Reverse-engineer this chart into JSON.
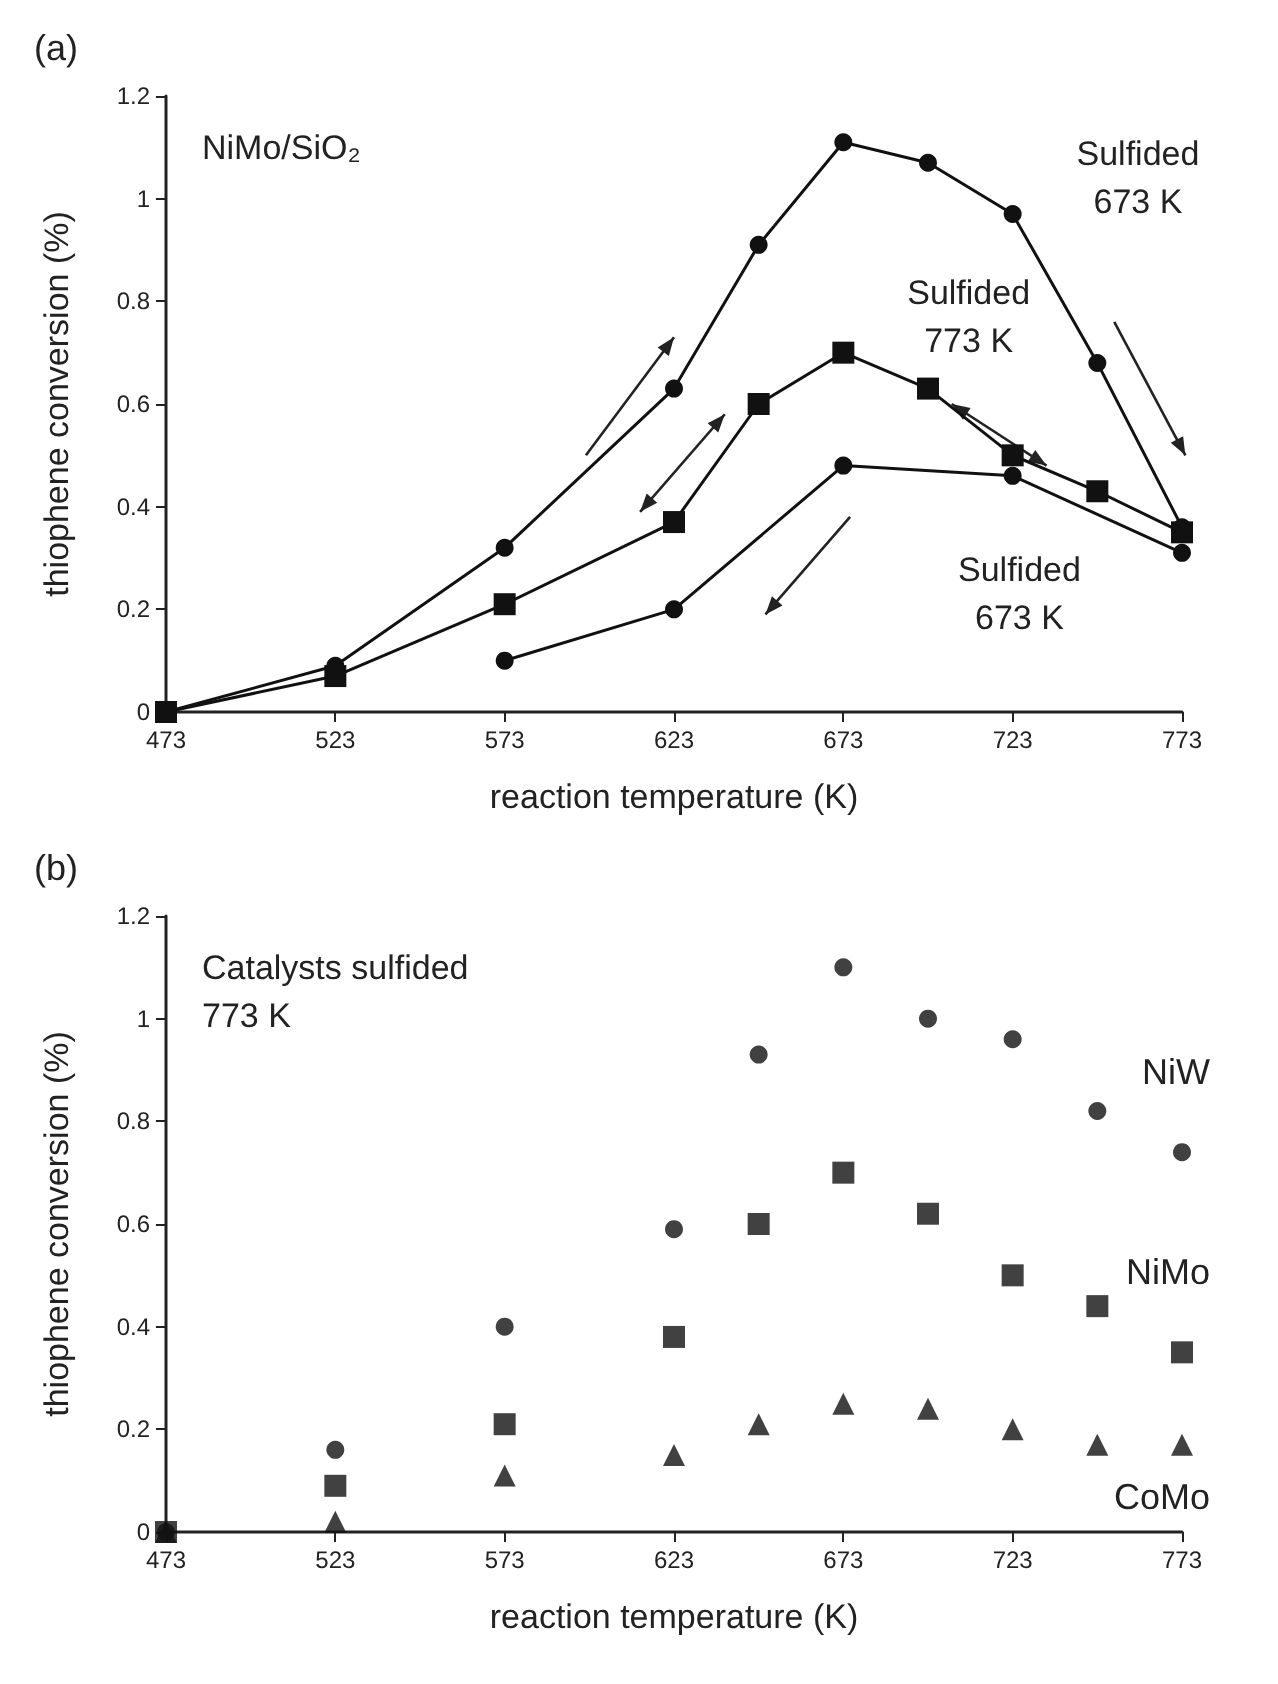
{
  "chart_data": [
    {
      "type": "line",
      "title": "(a)",
      "xlabel": "reaction temperature (K)",
      "ylabel": "thiophene conversion (%)",
      "xlim": [
        473,
        773
      ],
      "xticks": [
        473,
        523,
        573,
        623,
        673,
        723,
        773
      ],
      "ylim": [
        0,
        1.2
      ],
      "yticks": [
        0,
        0.2,
        0.4,
        0.6,
        0.8,
        1,
        1.2
      ],
      "grid": false,
      "legend": false,
      "line_style": "solid",
      "series": [
        {
          "color": "#111111",
          "marker": "square",
          "x": [
            473,
            523,
            573,
            623,
            648,
            673,
            698,
            723,
            748,
            773
          ],
          "values": [
            0,
            0.07,
            0.21,
            0.37,
            0.6,
            0.7,
            0.63,
            0.5,
            0.43,
            0.35
          ]
        },
        {
          "color": "#111111",
          "marker": "circle",
          "x": [
            473,
            523,
            573,
            623,
            648,
            673,
            698,
            723,
            748,
            773
          ],
          "values": [
            0,
            0.09,
            0.32,
            0.63,
            0.91,
            1.11,
            1.07,
            0.97,
            0.68,
            0.36
          ]
        },
        {
          "color": "#111111",
          "marker": "circle",
          "x": [
            573,
            623,
            673,
            723,
            773
          ],
          "values": [
            0.1,
            0.2,
            0.48,
            0.46,
            0.31
          ]
        }
      ],
      "annotations": [
        "NiMo/SiO₂",
        "Sulfided\n673 K",
        "Sulfided\n773 K",
        "Sulfided\n673 K"
      ]
    },
    {
      "type": "scatter",
      "title": "(b)",
      "xlabel": "reaction temperature (K)",
      "ylabel": "thiophene conversion (%)",
      "xlim": [
        473,
        773
      ],
      "xticks": [
        473,
        523,
        573,
        623,
        673,
        723,
        773
      ],
      "ylim": [
        0,
        1.2
      ],
      "yticks": [
        0,
        0.2,
        0.4,
        0.6,
        0.8,
        1,
        1.2
      ],
      "grid": false,
      "legend": false,
      "series": [
        {
          "name": "NiW",
          "color": "#111111",
          "marker": "circle",
          "x": [
            473,
            523,
            573,
            623,
            648,
            673,
            698,
            723,
            748,
            773
          ],
          "values": [
            0,
            0.16,
            0.4,
            0.59,
            0.93,
            1.1,
            1.0,
            0.96,
            0.82,
            0.74
          ]
        },
        {
          "name": "NiMo",
          "color": "#111111",
          "marker": "square",
          "x": [
            473,
            523,
            573,
            623,
            648,
            673,
            698,
            723,
            748,
            773
          ],
          "values": [
            0,
            0.09,
            0.21,
            0.38,
            0.6,
            0.7,
            0.62,
            0.5,
            0.44,
            0.35
          ]
        },
        {
          "name": "CoMo",
          "color": "#111111",
          "marker": "triangle",
          "x": [
            473,
            523,
            573,
            623,
            648,
            673,
            698,
            723,
            748,
            773
          ],
          "values": [
            0,
            0.02,
            0.11,
            0.15,
            0.21,
            0.25,
            0.24,
            0.2,
            0.17,
            0.17
          ]
        }
      ],
      "annotations": [
        "Catalysts sulfided\n773 K"
      ]
    }
  ]
}
